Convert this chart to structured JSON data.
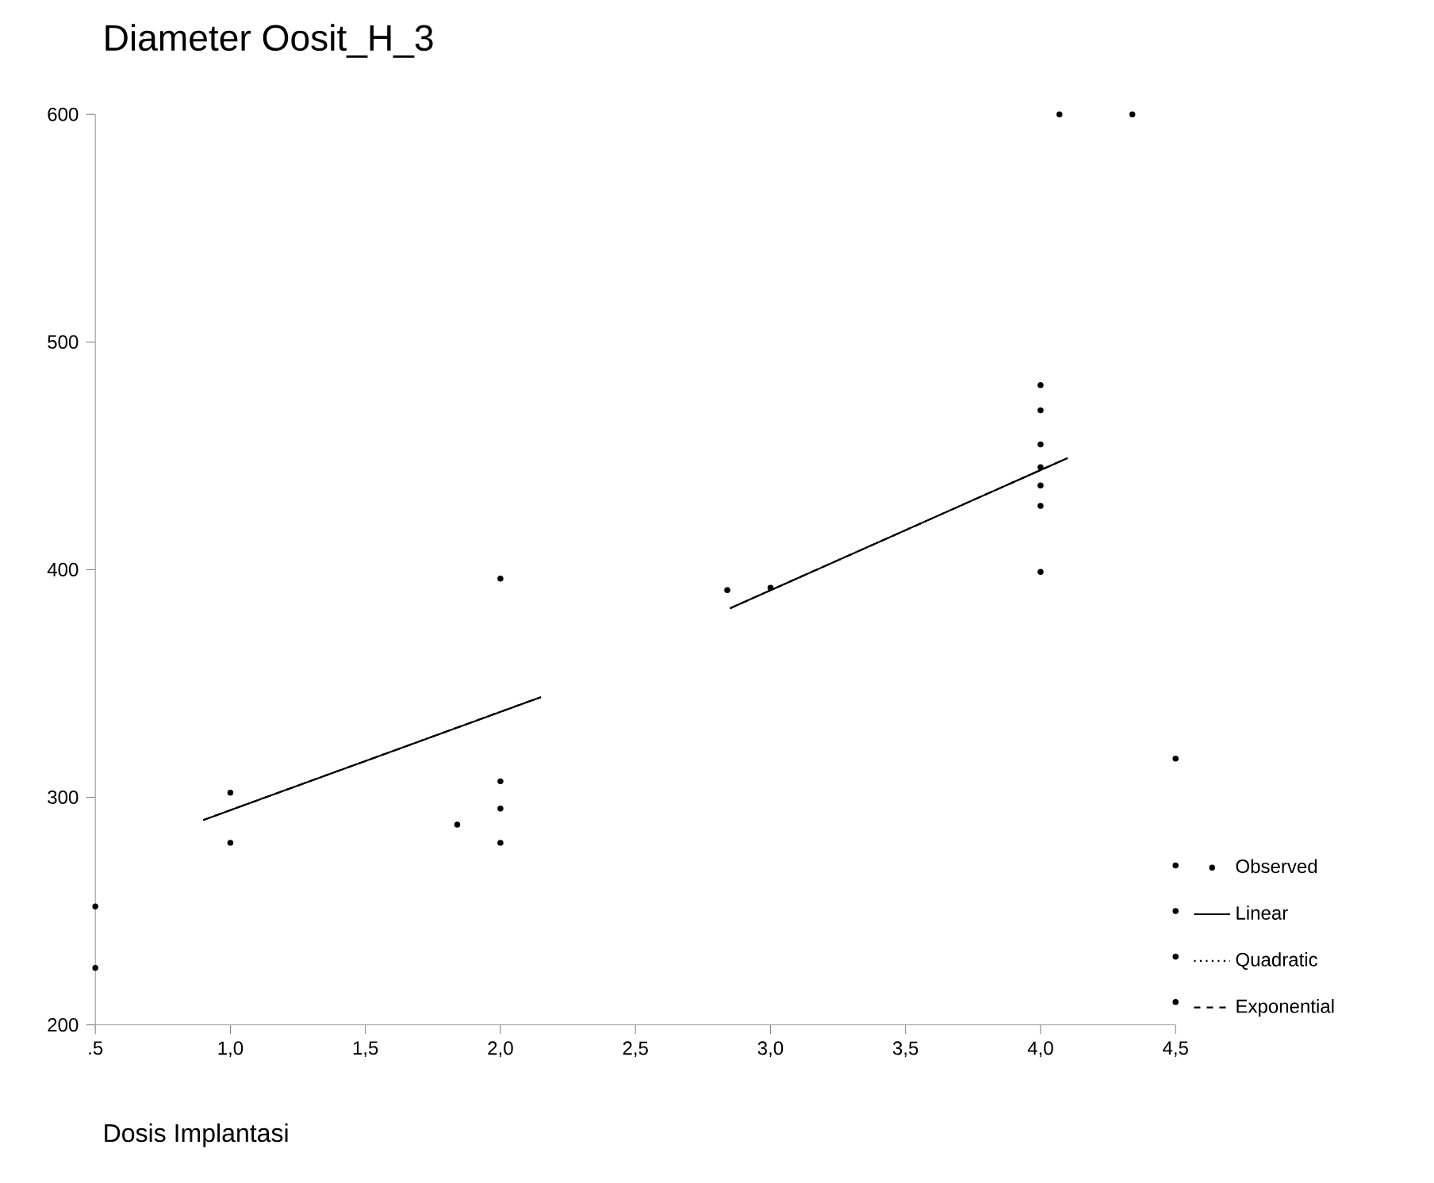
{
  "chart_data": {
    "type": "scatter",
    "title": "Diameter Oosit_H_3",
    "xlabel": "Dosis Implantasi",
    "xlim": [
      0.5,
      4.5
    ],
    "ylim": [
      200,
      600
    ],
    "xticks": [
      {
        "value": 0.5,
        "label": ".5"
      },
      {
        "value": 1.0,
        "label": "1,0"
      },
      {
        "value": 1.5,
        "label": "1,5"
      },
      {
        "value": 2.0,
        "label": "2,0"
      },
      {
        "value": 2.5,
        "label": "2,5"
      },
      {
        "value": 3.0,
        "label": "3,0"
      },
      {
        "value": 3.5,
        "label": "3,5"
      },
      {
        "value": 4.0,
        "label": "4,0"
      },
      {
        "value": 4.5,
        "label": "4,5"
      }
    ],
    "yticks": [
      200,
      300,
      400,
      500,
      600
    ],
    "legend": "right",
    "series": [
      {
        "name": "Observed",
        "color": "#000000",
        "x": [
          0.5,
          0.5,
          1.0,
          1.0,
          1.84,
          2.0,
          2.0,
          2.0,
          2.0,
          2.84,
          3.0,
          4.0,
          4.0,
          4.0,
          4.0,
          4.0,
          4.0,
          4.0,
          4.07,
          4.34,
          4.5,
          4.5,
          4.5,
          4.5,
          4.5
        ],
        "values": [
          252,
          225,
          302,
          280,
          288,
          396,
          307,
          295,
          280,
          391,
          392,
          481,
          470,
          455,
          445,
          437,
          428,
          399,
          600,
          600,
          317,
          270,
          250,
          230,
          210
        ]
      },
      {
        "name": "Linear",
        "type": "line",
        "line_style": "solid",
        "color": "#000000",
        "x": [
          0.9,
          2.15,
          2.5,
          2.85,
          4.1
        ],
        "values": [
          290,
          344,
          null,
          383,
          449
        ]
      },
      {
        "name": "Quadratic",
        "type": "line",
        "line_style": "dotted",
        "color": "#000000",
        "x": [
          0.9,
          2.15,
          2.5,
          2.85,
          4.1
        ],
        "values": [
          290,
          344,
          null,
          383,
          449
        ]
      },
      {
        "name": "Exponential",
        "type": "line",
        "line_style": "dashed",
        "color": "#000000",
        "x": [
          0.9,
          2.15,
          2.5,
          2.85,
          4.1
        ],
        "values": [
          290,
          344,
          null,
          383,
          449
        ]
      }
    ]
  }
}
